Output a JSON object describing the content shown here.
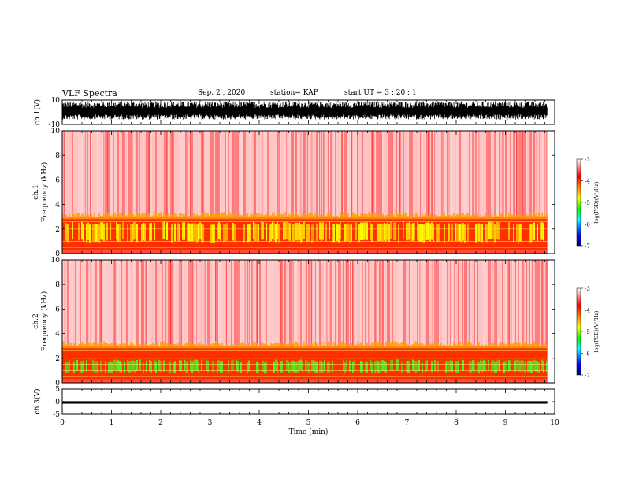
{
  "header": {
    "title": "VLF Spectra",
    "date": "Sep. 2 , 2020",
    "station": "station= KAP",
    "start": "start  UT =   3 : 20 : 1"
  },
  "chart_data": [
    {
      "type": "line",
      "panel": "ch1-waveform",
      "ylabel": "ch.1(V)",
      "ylim": [
        -10,
        10
      ],
      "yticks": [
        "10",
        "-10"
      ],
      "xlim": [
        0,
        10
      ],
      "data_end_min": 9.85,
      "description_values": {
        "typical_min": -6,
        "typical_max": 9,
        "color": "#000000"
      }
    },
    {
      "type": "heatmap",
      "panel": "ch1-spectrogram",
      "ylabel": "ch.1 Frequency (kHz)",
      "ylim": [
        0,
        10
      ],
      "yticks": [
        "0",
        "2",
        "4",
        "6",
        "8",
        "10"
      ],
      "xlim": [
        0,
        10
      ],
      "data_end_min": 9.85,
      "band_top_khz": 3.0,
      "yellow_band_khz": [
        1.0,
        2.6
      ],
      "colorbar": {
        "label": "log(PSD)(V²/Hz)",
        "range": [
          -7,
          -3
        ],
        "ticks": [
          "-3",
          "-4",
          "-5",
          "-6",
          "-7"
        ],
        "stops": [
          "#000080",
          "#0000ff",
          "#00ffff",
          "#00ff00",
          "#ffff00",
          "#ff8000",
          "#ff0000",
          "#ffffff"
        ]
      }
    },
    {
      "type": "heatmap",
      "panel": "ch2-spectrogram",
      "ylabel": "ch.2 Frequency (kHz)",
      "ylim": [
        0,
        10
      ],
      "yticks": [
        "0",
        "2",
        "4",
        "6",
        "8",
        "10"
      ],
      "xlim": [
        0,
        10
      ],
      "data_end_min": 9.85,
      "band_top_khz": 3.0,
      "green_band_khz": [
        0.9,
        1.9
      ],
      "colorbar": {
        "label": "log(PSD)(V²/Hz)",
        "range": [
          -7,
          -3
        ],
        "ticks": [
          "-3",
          "-4",
          "-5",
          "-6",
          "-7"
        ],
        "stops": [
          "#000080",
          "#0000ff",
          "#00ffff",
          "#00ff00",
          "#ffff00",
          "#ff8000",
          "#ff0000",
          "#ffffff"
        ]
      }
    },
    {
      "type": "line",
      "panel": "ch3-waveform",
      "ylabel": "ch.3(V)",
      "ylim": [
        -5,
        5
      ],
      "yticks": [
        "5",
        "0",
        "-5"
      ],
      "xlim": [
        0,
        10
      ],
      "data_end_min": 9.85,
      "description_values": {
        "typical_min": -0.8,
        "typical_max": 0.2,
        "color": "#000000"
      }
    }
  ],
  "xaxis": {
    "label": "Time  (min)",
    "ticks": [
      "0",
      "1",
      "2",
      "3",
      "4",
      "5",
      "6",
      "7",
      "8",
      "9",
      "10"
    ]
  }
}
